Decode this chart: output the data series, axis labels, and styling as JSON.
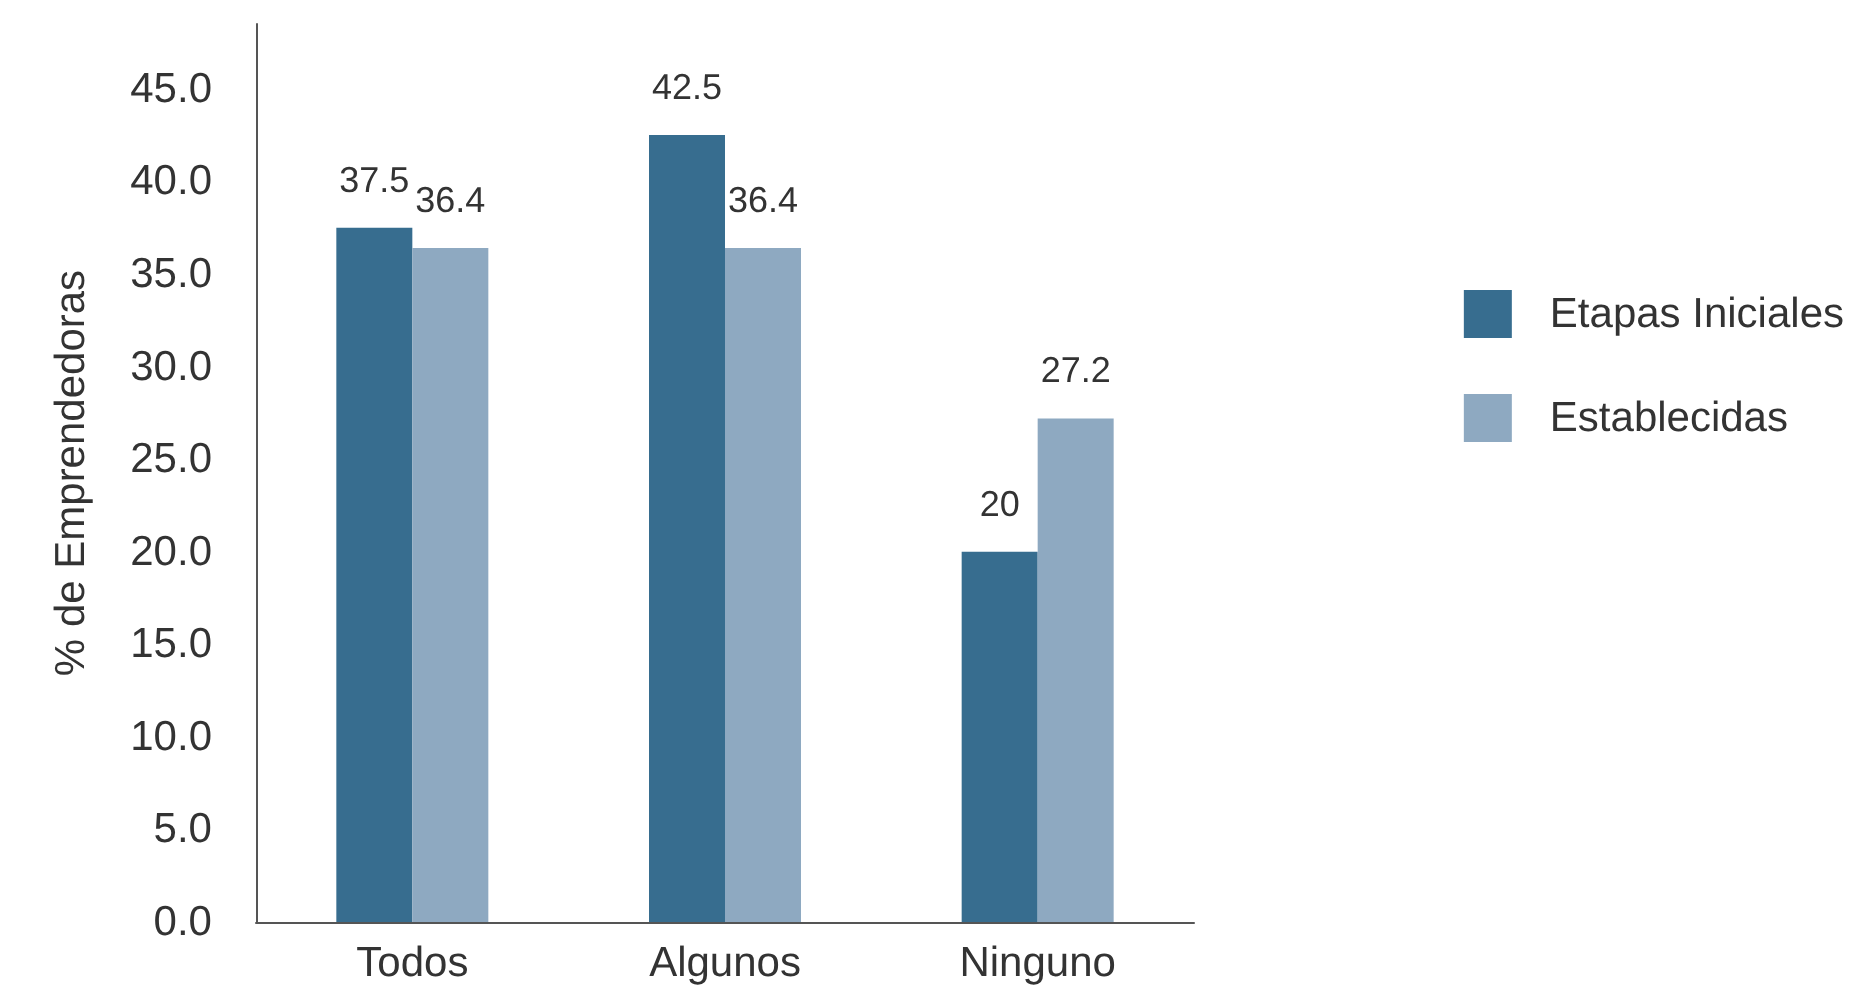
{
  "chart_data": {
    "type": "bar",
    "ylabel": "% de Emprendedoras",
    "categories": [
      "Todos",
      "Algunos",
      "Ninguno"
    ],
    "series": [
      {
        "name": "Etapas Iniciales",
        "color": "#376d8f",
        "values": [
          37.5,
          42.5,
          20
        ]
      },
      {
        "name": "Establecidas",
        "color": "#8ea9c1",
        "values": [
          36.4,
          36.4,
          27.2
        ]
      }
    ],
    "ylim": [
      0,
      48.5
    ],
    "yticks": [
      {
        "value": 0,
        "label": "0.0"
      },
      {
        "value": 5,
        "label": "5.0"
      },
      {
        "value": 10,
        "label": "10.0"
      },
      {
        "value": 15,
        "label": "15.0"
      },
      {
        "value": 20,
        "label": "20.0"
      },
      {
        "value": 25,
        "label": "25.0"
      },
      {
        "value": 30,
        "label": "30.0"
      },
      {
        "value": 35,
        "label": "35.0"
      },
      {
        "value": 40,
        "label": "40.0"
      },
      {
        "value": 45,
        "label": "45.0"
      }
    ],
    "data_labels": true,
    "grid": false,
    "legend": "right"
  }
}
